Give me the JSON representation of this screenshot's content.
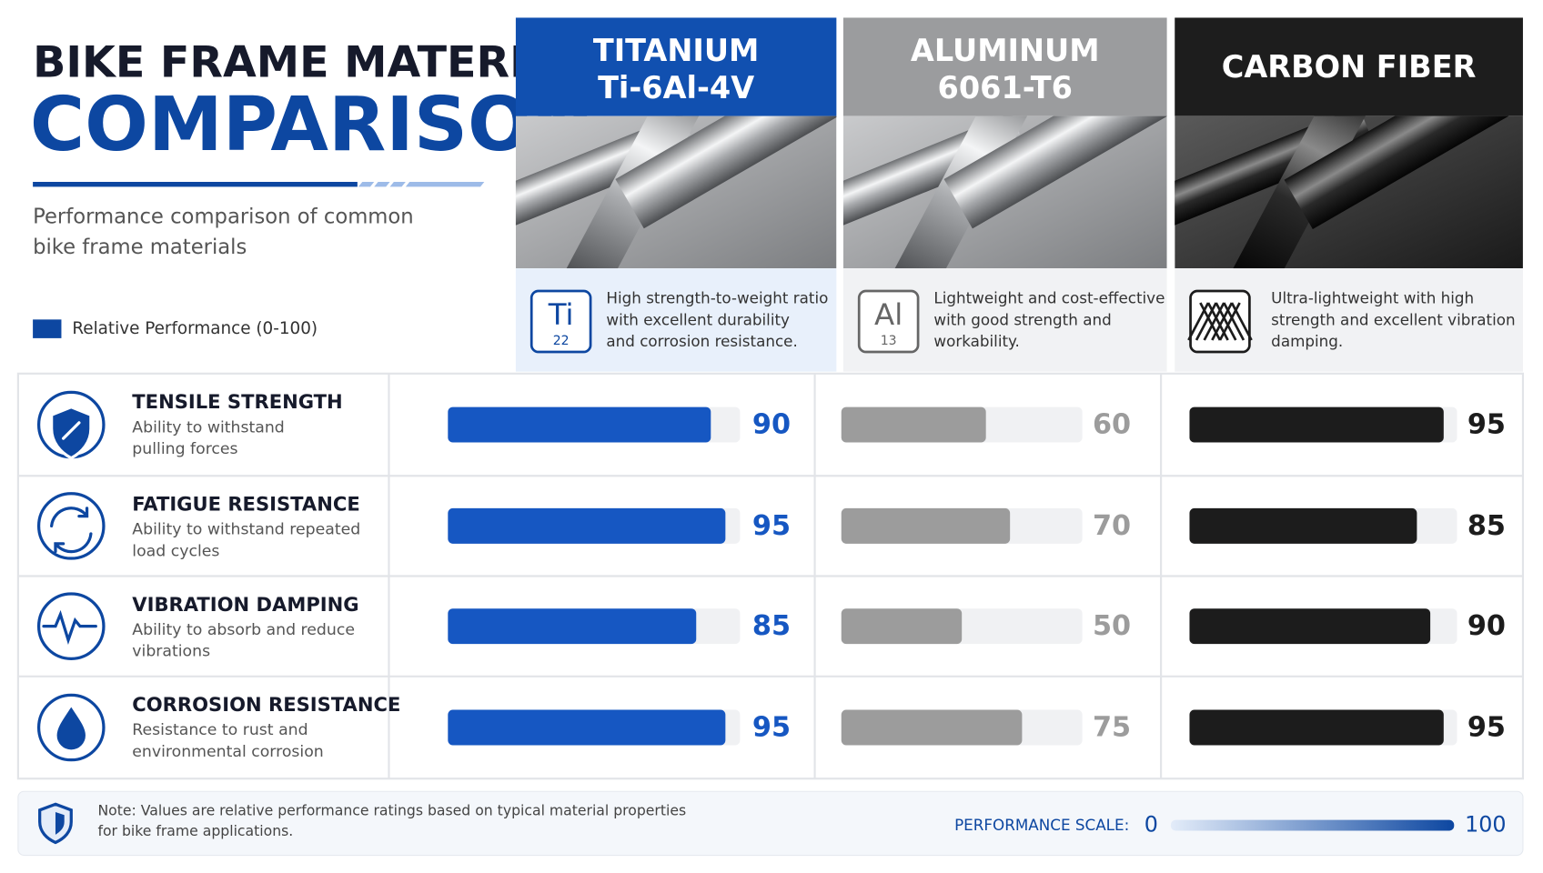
{
  "header": {
    "title_line1": "BIKE FRAME MATERIAL",
    "title_line2": "COMPARISON",
    "subtitle": [
      "Performance comparison of common",
      "bike frame materials"
    ]
  },
  "materials": [
    {
      "grade": "Ti-6Al-4V",
      "symbol": "Ti",
      "number": "22",
      "description": [
        "High strength-to-weight ratio",
        "with excellent durability",
        "and corrosion resistance."
      ]
    },
    {
      "grade": "6061-T6",
      "symbol": "Al",
      "number": "13",
      "description": [
        "Lightweight and cost-effective",
        "with good strength and",
        "workability."
      ]
    },
    {
      "description": [
        "Ultra-lightweight with high",
        "strength and excellent vibration",
        "damping."
      ]
    }
  ],
  "metrics": [
    {
      "description": [
        "Ability to withstand",
        "pulling forces"
      ]
    },
    {
      "description": [
        "Ability to withstand repeated",
        "load cycles"
      ]
    },
    {
      "description": [
        "Ability to absorb and reduce",
        "vibrations"
      ]
    },
    {
      "description": [
        "Resistance to rust and",
        "environmental corrosion"
      ]
    }
  ],
  "chart_data": {
    "type": "bar",
    "legend_label": "Relative Performance (0-100)",
    "categories": [
      "TENSILE STRENGTH",
      "FATIGUE RESISTANCE",
      "VIBRATION DAMPING",
      "CORROSION RESISTANCE"
    ],
    "series": [
      {
        "name": "TITANIUM",
        "color": "#1657c2",
        "values": [
          90,
          95,
          85,
          95
        ]
      },
      {
        "name": "ALUMINUM",
        "color": "#9c9c9c",
        "values": [
          60,
          70,
          50,
          75
        ]
      },
      {
        "name": "CARBON FIBER",
        "color": "#1c1c1c",
        "values": [
          95,
          85,
          90,
          95
        ]
      }
    ],
    "xlim": [
      0,
      100
    ],
    "xticks": [
      0,
      100
    ],
    "scale_label": "PERFORMANCE SCALE:"
  },
  "footer": {
    "note": [
      "Note: Values are relative performance ratings based on typical material properties",
      "for bike frame applications."
    ]
  }
}
